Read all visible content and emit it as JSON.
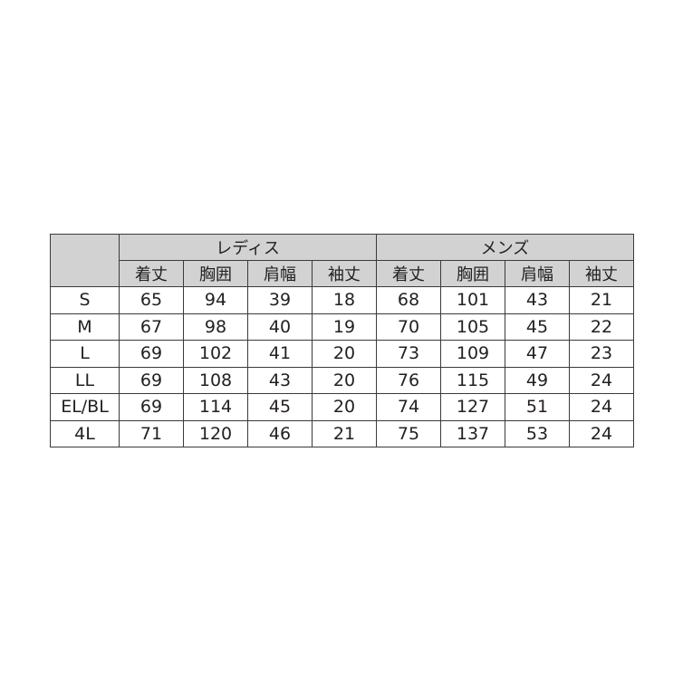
{
  "table": {
    "groups": [
      "レディス",
      "メンズ"
    ],
    "columns": [
      "着丈",
      "胸囲",
      "肩幅",
      "袖丈",
      "着丈",
      "胸囲",
      "肩幅",
      "袖丈"
    ],
    "rows": [
      [
        "S",
        65,
        94,
        39,
        18,
        68,
        101,
        43,
        21
      ],
      [
        "M",
        67,
        98,
        40,
        19,
        70,
        105,
        45,
        22
      ],
      [
        "L",
        69,
        102,
        41,
        20,
        73,
        109,
        47,
        23
      ],
      [
        "LL",
        69,
        108,
        43,
        20,
        76,
        115,
        49,
        24
      ],
      [
        "EL/BL",
        69,
        114,
        45,
        20,
        74,
        127,
        51,
        24
      ],
      [
        "4L",
        71,
        120,
        46,
        21,
        75,
        137,
        53,
        24
      ]
    ]
  }
}
